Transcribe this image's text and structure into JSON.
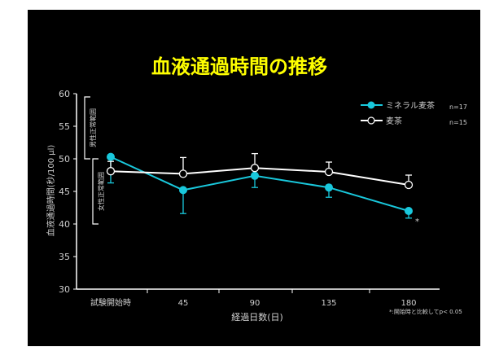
{
  "chart_data": {
    "type": "line",
    "title": "血液通過時間の推移",
    "ylabel": "血液通過時間(秒/100 μl)",
    "xlabel": "経過日数(日)",
    "categories": [
      "試験開始時",
      "45",
      "90",
      "135",
      "180"
    ],
    "y_ticks": [
      "30",
      "35",
      "40",
      "45",
      "50",
      "55",
      "60"
    ],
    "ylim": [
      30,
      60
    ],
    "grid": false,
    "legend_position": "top-right",
    "series": [
      {
        "name": "ミネラル麦茶",
        "n_label": "n=17",
        "color": "#19c8dc",
        "marker": "filled-circle",
        "values": [
          50.3,
          45.2,
          47.4,
          45.6,
          42.0
        ],
        "err": [
          4.0,
          3.6,
          1.8,
          1.5,
          1.1
        ],
        "err_dir": "down"
      },
      {
        "name": "麦茶",
        "n_label": "n=15",
        "color": "#ffffff",
        "marker": "open-circle",
        "values": [
          48.1,
          47.7,
          48.6,
          48.0,
          46.0
        ],
        "err": [
          1.5,
          2.5,
          2.2,
          1.5,
          1.5
        ],
        "err_dir": "up"
      }
    ],
    "ranges": [
      {
        "label": "男性正常範囲",
        "from": 50,
        "to": 59.5
      },
      {
        "label": "女性正常範囲",
        "from": 40,
        "to": 50
      }
    ],
    "annotations": [
      {
        "text": "*",
        "category": "180"
      },
      {
        "text": "*:開始時と比較してp< 0.05"
      }
    ],
    "colors": {
      "background": "#000000",
      "title": "#ffff00",
      "axis": "#ffffff"
    }
  }
}
